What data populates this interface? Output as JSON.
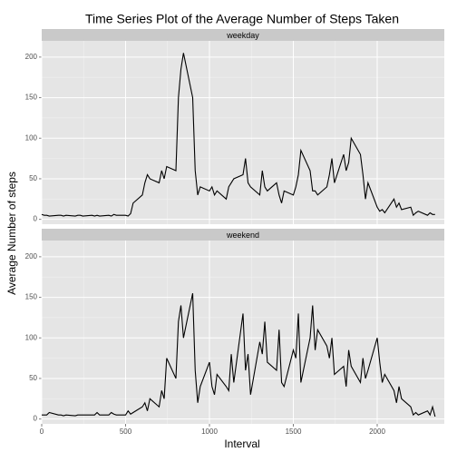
{
  "chart_data": {
    "type": "line",
    "title": "Time Series Plot of the Average Number of Steps Taken",
    "xlabel": "Interval",
    "ylabel": "Average Number of steps",
    "color": "#000000",
    "grid": true,
    "xlim": [
      0,
      2400
    ],
    "xticks": [
      0,
      500,
      1000,
      1500,
      2000
    ],
    "ylim": [
      -6,
      220
    ],
    "yticks": [
      0,
      50,
      100,
      150,
      200
    ],
    "x": [
      0,
      15,
      30,
      45,
      100,
      115,
      130,
      145,
      200,
      215,
      230,
      245,
      300,
      315,
      330,
      345,
      400,
      415,
      430,
      445,
      500,
      515,
      530,
      545,
      600,
      615,
      630,
      645,
      700,
      715,
      730,
      745,
      800,
      815,
      830,
      845,
      900,
      915,
      930,
      945,
      1000,
      1015,
      1030,
      1045,
      1100,
      1115,
      1130,
      1145,
      1200,
      1215,
      1230,
      1245,
      1300,
      1315,
      1330,
      1345,
      1400,
      1415,
      1430,
      1445,
      1500,
      1515,
      1530,
      1545,
      1600,
      1615,
      1630,
      1645,
      1700,
      1715,
      1730,
      1745,
      1800,
      1815,
      1830,
      1845,
      1900,
      1915,
      1930,
      1945,
      2000,
      2015,
      2030,
      2045,
      2100,
      2115,
      2130,
      2145,
      2200,
      2215,
      2230,
      2245,
      2300,
      2315,
      2330,
      2345
    ],
    "facets": [
      {
        "label": "weekday",
        "values": [
          6,
          5,
          5,
          4,
          5,
          5,
          4,
          5,
          4,
          5,
          5,
          4,
          5,
          4,
          5,
          4,
          5,
          4,
          6,
          5,
          5,
          4,
          7,
          20,
          30,
          45,
          55,
          50,
          45,
          60,
          50,
          65,
          60,
          150,
          185,
          205,
          150,
          60,
          30,
          40,
          35,
          40,
          30,
          35,
          25,
          40,
          45,
          50,
          55,
          75,
          45,
          40,
          30,
          60,
          40,
          35,
          45,
          30,
          20,
          35,
          30,
          40,
          55,
          85,
          60,
          35,
          35,
          30,
          40,
          55,
          75,
          45,
          80,
          60,
          70,
          100,
          80,
          55,
          25,
          45,
          15,
          10,
          12,
          8,
          25,
          15,
          20,
          12,
          15,
          5,
          8,
          10,
          5,
          8,
          6,
          6
        ]
      },
      {
        "label": "weekend",
        "values": [
          5,
          5,
          5,
          8,
          5,
          5,
          4,
          5,
          4,
          5,
          5,
          5,
          5,
          5,
          8,
          5,
          5,
          8,
          6,
          5,
          5,
          10,
          6,
          8,
          15,
          20,
          10,
          25,
          15,
          35,
          25,
          75,
          50,
          120,
          140,
          100,
          155,
          60,
          20,
          40,
          70,
          40,
          30,
          55,
          40,
          35,
          80,
          45,
          130,
          60,
          80,
          30,
          95,
          80,
          120,
          70,
          60,
          110,
          45,
          40,
          85,
          75,
          130,
          45,
          100,
          140,
          85,
          110,
          90,
          75,
          100,
          55,
          65,
          40,
          85,
          65,
          45,
          75,
          50,
          60,
          100,
          70,
          45,
          55,
          35,
          20,
          40,
          25,
          15,
          5,
          8,
          5,
          10,
          5,
          15,
          3
        ]
      }
    ]
  }
}
